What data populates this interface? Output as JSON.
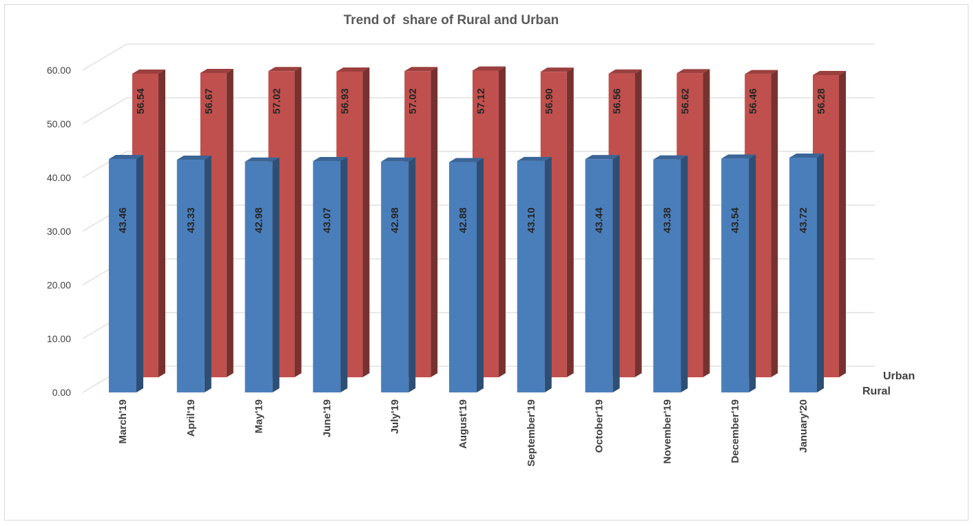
{
  "chart_data": {
    "type": "bar",
    "title": "Trend of  share of Rural and Urban",
    "categories": [
      "March'19",
      "April'19",
      "May'19",
      "June'19",
      "July'19",
      "August'19",
      "September'19",
      "October'19",
      "November'19",
      "December'19",
      "January'20"
    ],
    "series": [
      {
        "name": "Rural",
        "color": "#4a7ebb",
        "values": [
          43.46,
          43.33,
          42.98,
          43.07,
          42.98,
          42.88,
          43.1,
          43.44,
          43.38,
          43.54,
          43.72
        ]
      },
      {
        "name": "Urban",
        "color": "#c0504d",
        "values": [
          56.54,
          56.67,
          57.02,
          56.93,
          57.02,
          57.12,
          56.9,
          56.56,
          56.62,
          56.46,
          56.28
        ]
      }
    ],
    "ylim": [
      0,
      60
    ],
    "yticks": [
      "0.00",
      "10.00",
      "20.00",
      "30.00",
      "40.00",
      "50.00",
      "60.00"
    ],
    "grid": true,
    "view": "3d-column",
    "data_labels": true
  }
}
